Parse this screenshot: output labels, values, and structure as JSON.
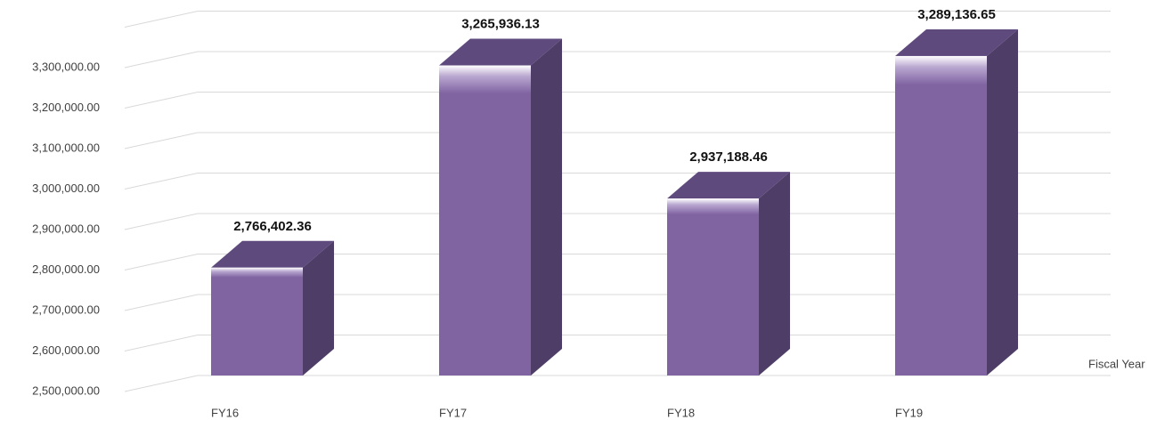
{
  "chart_data": {
    "type": "bar3d",
    "categories": [
      "FY16",
      "FY17",
      "FY18",
      "FY19"
    ],
    "values": [
      2766402.36,
      3265936.13,
      2937188.46,
      3289136.65
    ],
    "value_labels": [
      "2,766,402.36",
      "3,265,936.13",
      "2,937,188.46",
      "3,289,136.65"
    ],
    "color": "#8064a2",
    "x_label": "Fiscal Year",
    "ylim": [
      2500000,
      3400000
    ],
    "yticks": [
      {
        "value": 2500000,
        "label": "2,500,000.00"
      },
      {
        "value": 2600000,
        "label": "2,600,000.00"
      },
      {
        "value": 2700000,
        "label": "2,700,000.00"
      },
      {
        "value": 2800000,
        "label": "2,800,000.00"
      },
      {
        "value": 2900000,
        "label": "2,900,000.00"
      },
      {
        "value": 3000000,
        "label": "3,000,000.00"
      },
      {
        "value": 3100000,
        "label": "3,100,000.00"
      },
      {
        "value": 3200000,
        "label": "3,200,000.00"
      },
      {
        "value": 3300000,
        "label": "3,300,000.00"
      }
    ],
    "grid": true
  }
}
